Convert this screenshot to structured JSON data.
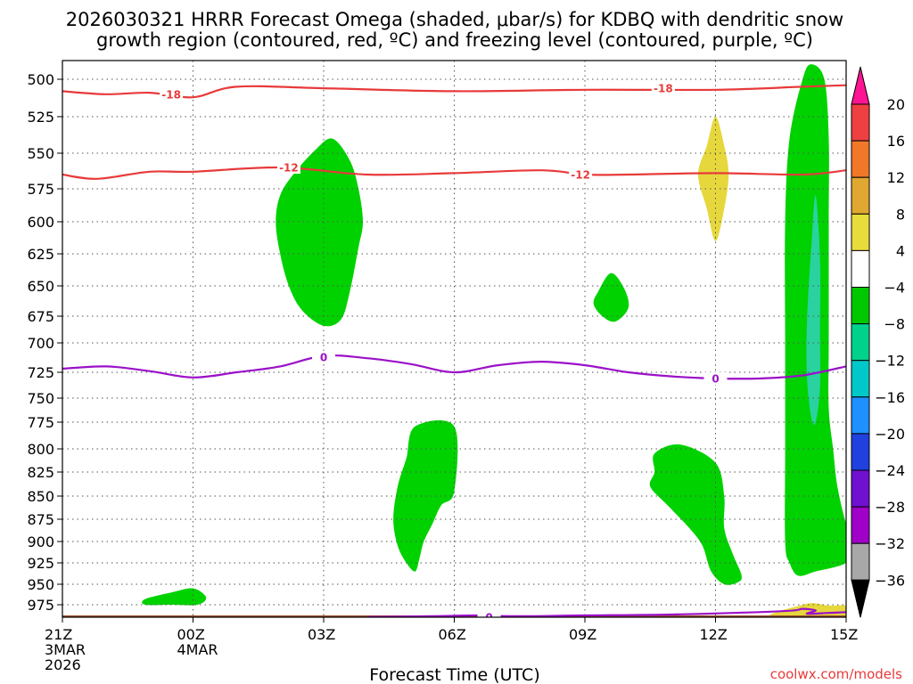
{
  "chart_data": {
    "type": "heatmap",
    "title_line1": "2026030321 HRRR Forecast Omega (shaded, μbar/s) for KDBQ with dendritic snow",
    "title_line2": "growth region (contoured, red, ºC) and freezing level (contoured, purple, ºC)",
    "xlabel": "Forecast Time (UTC)",
    "credit": "coolwx.com/models",
    "x_ticks": [
      {
        "hour": 0,
        "label": "21Z",
        "sub1": "3MAR",
        "sub2": "2026"
      },
      {
        "hour": 3,
        "label": "00Z",
        "sub1": "4MAR",
        "sub2": ""
      },
      {
        "hour": 6,
        "label": "03Z",
        "sub1": "",
        "sub2": ""
      },
      {
        "hour": 9,
        "label": "06Z",
        "sub1": "",
        "sub2": ""
      },
      {
        "hour": 12,
        "label": "09Z",
        "sub1": "",
        "sub2": ""
      },
      {
        "hour": 15,
        "label": "12Z",
        "sub1": "",
        "sub2": ""
      },
      {
        "hour": 18,
        "label": "15Z",
        "sub1": "",
        "sub2": ""
      }
    ],
    "x_range_hours": [
      0,
      18
    ],
    "pressure_levels": [
      500,
      525,
      550,
      575,
      600,
      625,
      650,
      675,
      700,
      725,
      750,
      775,
      800,
      825,
      850,
      875,
      900,
      925,
      950,
      975
    ],
    "y_range_mb": [
      485,
      995
    ],
    "colorbar": {
      "labels": [
        "20",
        "16",
        "12",
        "8",
        "4",
        "−4",
        "−8",
        "−12",
        "−16",
        "−20",
        "−24",
        "−28",
        "−32",
        "−36"
      ],
      "colors": [
        "#ff1493",
        "#ee4040",
        "#f07828",
        "#e0a830",
        "#e8dc3c",
        "#ffffff",
        "#00c800",
        "#00d28c",
        "#00c8c8",
        "#1e90ff",
        "#2040e0",
        "#7010d0",
        "#a000c8",
        "#a8a8a8",
        "#000000"
      ]
    },
    "colors": {
      "omega_weak": "#00d200",
      "omega_moderate": "#2ad2a0",
      "omega_positive": "#e6d83c",
      "omega_strong_positive": "#e8c83c",
      "isotherm_dgz": "#e83a3a",
      "freezing_level": "#9b10c8",
      "terrain": "#a0522d"
    },
    "omega_regions": [
      {
        "name": "upper-green-03z",
        "value": -6,
        "points": [
          [
            6.2,
            540
          ],
          [
            5.8,
            548
          ],
          [
            5.3,
            565
          ],
          [
            5.0,
            580
          ],
          [
            4.9,
            600
          ],
          [
            5.0,
            625
          ],
          [
            5.2,
            650
          ],
          [
            5.5,
            670
          ],
          [
            6.0,
            684
          ],
          [
            6.4,
            678
          ],
          [
            6.6,
            655
          ],
          [
            6.8,
            620
          ],
          [
            6.9,
            600
          ],
          [
            6.8,
            575
          ],
          [
            6.6,
            555
          ]
        ]
      },
      {
        "name": "yellow-12z-upper",
        "value": 5,
        "points": [
          [
            15.0,
            525
          ],
          [
            14.8,
            545
          ],
          [
            14.6,
            565
          ],
          [
            14.8,
            590
          ],
          [
            15.0,
            615
          ],
          [
            15.2,
            590
          ],
          [
            15.3,
            565
          ],
          [
            15.2,
            545
          ]
        ]
      },
      {
        "name": "small-green-09z",
        "value": -6,
        "points": [
          [
            12.6,
            640
          ],
          [
            12.3,
            655
          ],
          [
            12.2,
            665
          ],
          [
            12.4,
            675
          ],
          [
            12.7,
            680
          ],
          [
            13.0,
            668
          ],
          [
            12.9,
            652
          ]
        ]
      },
      {
        "name": "lower-green-05z",
        "value": -6,
        "points": [
          [
            8.1,
            779
          ],
          [
            9.0,
            779
          ],
          [
            9.0,
            845
          ],
          [
            8.7,
            860
          ],
          [
            8.5,
            880
          ],
          [
            8.3,
            900
          ],
          [
            8.2,
            920
          ],
          [
            8.1,
            935
          ],
          [
            7.9,
            925
          ],
          [
            7.7,
            905
          ],
          [
            7.6,
            875
          ],
          [
            7.7,
            840
          ],
          [
            7.9,
            810
          ]
        ]
      },
      {
        "name": "lower-green-11z",
        "value": -6,
        "points": [
          [
            13.6,
            805
          ],
          [
            14.2,
            796
          ],
          [
            15.0,
            815
          ],
          [
            15.2,
            850
          ],
          [
            15.2,
            885
          ],
          [
            15.4,
            915
          ],
          [
            15.6,
            940
          ],
          [
            15.5,
            948
          ],
          [
            15.2,
            950
          ],
          [
            14.9,
            935
          ],
          [
            14.7,
            905
          ],
          [
            14.4,
            885
          ],
          [
            13.9,
            860
          ],
          [
            13.5,
            840
          ],
          [
            13.6,
            825
          ]
        ]
      },
      {
        "name": "surface-green-00z",
        "value": -6,
        "points": [
          [
            1.9,
            968
          ],
          [
            2.5,
            960
          ],
          [
            3.0,
            955
          ],
          [
            3.3,
            966
          ],
          [
            3.1,
            975
          ],
          [
            2.5,
            975
          ],
          [
            1.9,
            975
          ]
        ]
      },
      {
        "name": "green-column-14z",
        "value": -7,
        "points": [
          [
            17.2,
            490
          ],
          [
            17.0,
            500
          ],
          [
            16.7,
            540
          ],
          [
            16.6,
            600
          ],
          [
            16.6,
            700
          ],
          [
            16.6,
            800
          ],
          [
            16.6,
            900
          ],
          [
            16.7,
            925
          ],
          [
            16.9,
            940
          ],
          [
            17.3,
            935
          ],
          [
            18.0,
            925
          ],
          [
            18.2,
            905
          ],
          [
            18.0,
            880
          ],
          [
            17.8,
            840
          ],
          [
            17.7,
            800
          ],
          [
            17.6,
            760
          ],
          [
            17.6,
            700
          ],
          [
            17.6,
            600
          ],
          [
            17.6,
            540
          ],
          [
            17.5,
            500
          ]
        ]
      },
      {
        "name": "teal-core-14z",
        "value": -10,
        "points": [
          [
            17.3,
            580
          ],
          [
            17.2,
            620
          ],
          [
            17.1,
            680
          ],
          [
            17.1,
            730
          ],
          [
            17.2,
            770
          ],
          [
            17.3,
            775
          ],
          [
            17.4,
            740
          ],
          [
            17.4,
            690
          ],
          [
            17.4,
            630
          ]
        ]
      },
      {
        "name": "yellow-surface-15z",
        "value": 5,
        "points": [
          [
            16.4,
            984
          ],
          [
            16.8,
            978
          ],
          [
            17.2,
            973
          ],
          [
            17.6,
            976
          ],
          [
            18.0,
            976
          ],
          [
            18.2,
            984
          ],
          [
            18.2,
            989
          ],
          [
            16.4,
            989
          ]
        ]
      }
    ],
    "contours": [
      {
        "name": "isotherm-minus18",
        "kind": "dgz",
        "label": "-18",
        "label_positions": [
          [
            2.5,
            510
          ],
          [
            13.8,
            506
          ]
        ],
        "points": [
          [
            0,
            508
          ],
          [
            1,
            510
          ],
          [
            2,
            509
          ],
          [
            3,
            512
          ],
          [
            4,
            505
          ],
          [
            6,
            506
          ],
          [
            9,
            508
          ],
          [
            12,
            507
          ],
          [
            15,
            507
          ],
          [
            17,
            505
          ],
          [
            18,
            504
          ]
        ]
      },
      {
        "name": "isotherm-minus12",
        "kind": "dgz",
        "label": "-12",
        "label_positions": [
          [
            5.2,
            560
          ],
          [
            11.9,
            565
          ]
        ],
        "points": [
          [
            0,
            565
          ],
          [
            0.8,
            568
          ],
          [
            2,
            563
          ],
          [
            3,
            563
          ],
          [
            5,
            560
          ],
          [
            7,
            565
          ],
          [
            9,
            564
          ],
          [
            11,
            562
          ],
          [
            12,
            565
          ],
          [
            13,
            565
          ],
          [
            15,
            564
          ],
          [
            17,
            565
          ],
          [
            18,
            562
          ]
        ]
      },
      {
        "name": "freezing-level-0c",
        "kind": "freezing",
        "label": "0",
        "label_positions": [
          [
            6.0,
            712
          ],
          [
            15.0,
            731
          ]
        ],
        "points": [
          [
            0,
            722
          ],
          [
            1,
            720
          ],
          [
            2,
            724
          ],
          [
            3,
            730
          ],
          [
            4,
            725
          ],
          [
            5,
            720
          ],
          [
            6,
            711
          ],
          [
            7,
            713
          ],
          [
            8,
            718
          ],
          [
            9,
            725
          ],
          [
            10,
            719
          ],
          [
            11,
            716
          ],
          [
            12,
            719
          ],
          [
            13,
            725
          ],
          [
            14,
            729
          ],
          [
            15,
            731
          ],
          [
            16,
            731
          ],
          [
            17,
            728
          ],
          [
            18,
            720
          ]
        ]
      },
      {
        "name": "freezing-level-surface",
        "kind": "freezing",
        "label": "0",
        "label_positions": [
          [
            9.8,
            990
          ]
        ],
        "points": [
          [
            7.0,
            990
          ],
          [
            8.5,
            989
          ],
          [
            9.5,
            988
          ],
          [
            10.5,
            989
          ],
          [
            12,
            988
          ],
          [
            14,
            987
          ],
          [
            16,
            984
          ],
          [
            16.8,
            982
          ],
          [
            17.0,
            980
          ],
          [
            17.3,
            982
          ],
          [
            17.1,
            986
          ],
          [
            17.6,
            985
          ],
          [
            18.0,
            984
          ]
        ]
      }
    ],
    "terrain_top_mb": 988
  }
}
